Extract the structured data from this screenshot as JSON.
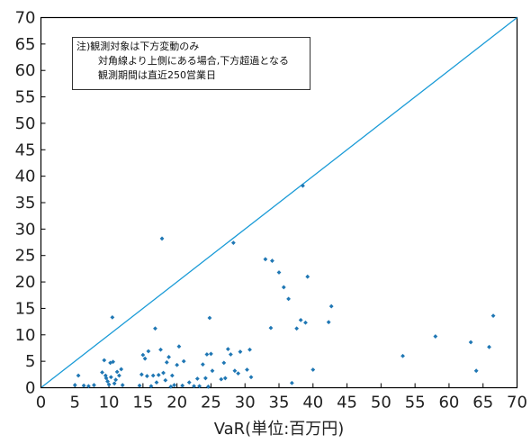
{
  "chart_data": {
    "type": "scatter",
    "xlabel": "VaR(単位:百万円)",
    "ylabel": "",
    "xlim": [
      0,
      70
    ],
    "ylim": [
      0,
      70
    ],
    "xticks": [
      0,
      5,
      10,
      15,
      20,
      25,
      30,
      35,
      40,
      45,
      50,
      55,
      60,
      65,
      70
    ],
    "yticks": [
      0,
      5,
      10,
      15,
      20,
      25,
      30,
      35,
      40,
      45,
      50,
      55,
      60,
      65,
      70
    ],
    "reference_line": {
      "from": [
        0,
        0
      ],
      "to": [
        70,
        70
      ]
    },
    "annotation": [
      "注)観測対象は下方変動のみ",
      "対角線より上側にある場合,下方超過となる",
      "観測期間は直近250営業日"
    ],
    "colors": {
      "points": "#1f77b4",
      "line": "#1a9bd7",
      "axis": "#000000"
    },
    "points": [
      [
        5.0,
        0.5
      ],
      [
        5.5,
        2.3
      ],
      [
        6.3,
        0.4
      ],
      [
        7.0,
        0.3
      ],
      [
        7.8,
        0.5
      ],
      [
        9.0,
        2.9
      ],
      [
        9.3,
        5.2
      ],
      [
        9.5,
        2.3
      ],
      [
        9.6,
        1.8
      ],
      [
        9.8,
        1.2
      ],
      [
        10.0,
        0.6
      ],
      [
        10.2,
        4.7
      ],
      [
        10.3,
        2.0
      ],
      [
        10.5,
        13.3
      ],
      [
        10.6,
        4.9
      ],
      [
        10.8,
        0.8
      ],
      [
        11.0,
        1.5
      ],
      [
        11.2,
        3.0
      ],
      [
        11.5,
        2.3
      ],
      [
        11.8,
        3.5
      ],
      [
        12.0,
        0.5
      ],
      [
        14.5,
        0.4
      ],
      [
        14.8,
        2.5
      ],
      [
        15.0,
        6.2
      ],
      [
        15.3,
        5.5
      ],
      [
        15.6,
        2.2
      ],
      [
        15.8,
        6.9
      ],
      [
        16.2,
        0.3
      ],
      [
        16.5,
        2.3
      ],
      [
        16.8,
        11.2
      ],
      [
        17.0,
        1.0
      ],
      [
        17.3,
        2.4
      ],
      [
        17.6,
        7.2
      ],
      [
        17.8,
        28.2
      ],
      [
        18.0,
        2.8
      ],
      [
        18.3,
        1.4
      ],
      [
        18.5,
        4.8
      ],
      [
        18.8,
        5.8
      ],
      [
        19.1,
        0.2
      ],
      [
        19.3,
        2.3
      ],
      [
        19.6,
        0.5
      ],
      [
        20.0,
        4.3
      ],
      [
        20.3,
        7.8
      ],
      [
        20.8,
        0.4
      ],
      [
        21.0,
        5.0
      ],
      [
        21.8,
        1.0
      ],
      [
        22.5,
        0.3
      ],
      [
        23.0,
        1.7
      ],
      [
        23.3,
        0.3
      ],
      [
        23.8,
        4.4
      ],
      [
        24.2,
        1.8
      ],
      [
        24.4,
        6.3
      ],
      [
        24.6,
        0.2
      ],
      [
        24.8,
        13.2
      ],
      [
        25.0,
        6.4
      ],
      [
        25.2,
        3.2
      ],
      [
        26.5,
        1.6
      ],
      [
        26.9,
        4.7
      ],
      [
        27.1,
        1.8
      ],
      [
        27.5,
        7.3
      ],
      [
        27.9,
        6.3
      ],
      [
        28.3,
        27.4
      ],
      [
        28.5,
        3.2
      ],
      [
        29.0,
        2.7
      ],
      [
        29.3,
        6.8
      ],
      [
        30.3,
        3.4
      ],
      [
        30.7,
        7.2
      ],
      [
        30.9,
        2.0
      ],
      [
        33.0,
        24.3
      ],
      [
        33.8,
        11.3
      ],
      [
        34.0,
        24.0
      ],
      [
        35.0,
        21.8
      ],
      [
        35.7,
        19.0
      ],
      [
        36.4,
        16.8
      ],
      [
        36.9,
        0.9
      ],
      [
        37.6,
        11.2
      ],
      [
        38.2,
        12.8
      ],
      [
        38.5,
        38.2
      ],
      [
        38.9,
        12.3
      ],
      [
        39.2,
        21.0
      ],
      [
        40.0,
        3.4
      ],
      [
        42.3,
        12.4
      ],
      [
        42.7,
        15.4
      ],
      [
        53.2,
        6.0
      ],
      [
        58.0,
        9.7
      ],
      [
        63.2,
        8.6
      ],
      [
        64.0,
        3.2
      ],
      [
        65.9,
        7.7
      ],
      [
        66.5,
        13.6
      ]
    ]
  }
}
